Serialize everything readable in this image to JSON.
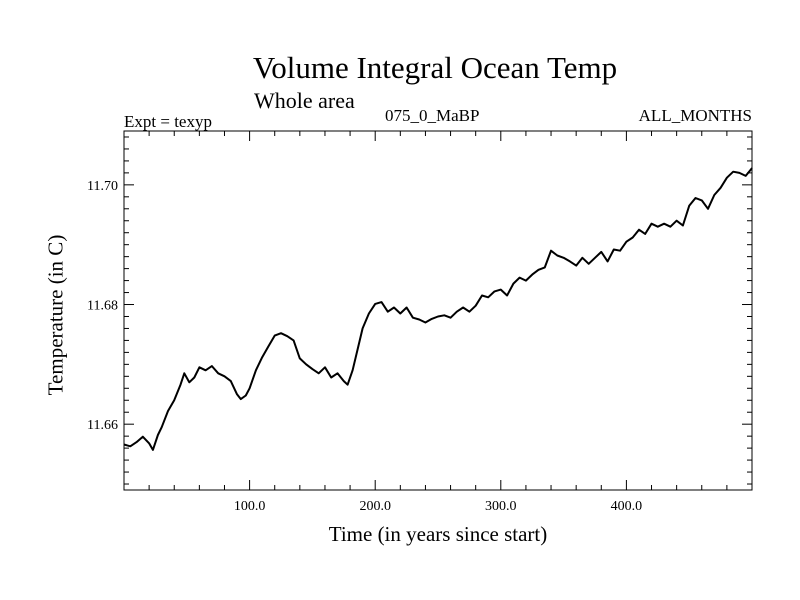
{
  "chart_data": {
    "type": "line",
    "title": "Volume Integral Ocean Temp",
    "subtitle": "Whole area",
    "annotations": {
      "left": "Expt = texyp",
      "center": "075_0_MaBP",
      "right": "ALL_MONTHS"
    },
    "xlabel": "Time (in years since start)",
    "ylabel": "Temperature (in C)",
    "xlim": [
      0,
      500
    ],
    "ylim": [
      11.649,
      11.709
    ],
    "x_major_ticks": [
      100,
      200,
      300,
      400
    ],
    "x_tick_labels": [
      "100.0",
      "200.0",
      "300.0",
      "400.0"
    ],
    "y_major_ticks": [
      11.66,
      11.68,
      11.7
    ],
    "y_tick_labels": [
      "11.66",
      "11.68",
      "11.70"
    ],
    "grid": false,
    "series": [
      {
        "color": "#000000",
        "x": [
          0,
          5,
          10,
          15,
          20,
          23,
          27,
          30,
          35,
          40,
          45,
          48,
          52,
          56,
          60,
          65,
          70,
          75,
          80,
          85,
          90,
          93,
          97,
          100,
          105,
          110,
          115,
          120,
          125,
          130,
          135,
          140,
          145,
          150,
          155,
          160,
          165,
          170,
          175,
          178,
          182,
          186,
          190,
          195,
          200,
          205,
          210,
          215,
          220,
          225,
          230,
          235,
          240,
          245,
          250,
          255,
          260,
          265,
          270,
          275,
          280,
          285,
          290,
          295,
          300,
          305,
          310,
          315,
          320,
          325,
          330,
          335,
          340,
          345,
          350,
          355,
          360,
          365,
          370,
          375,
          380,
          385,
          390,
          395,
          400,
          405,
          410,
          415,
          420,
          425,
          430,
          435,
          440,
          445,
          450,
          455,
          460,
          465,
          470,
          475,
          480,
          485,
          490,
          495,
          500
        ],
        "y": [
          11.6566,
          11.6563,
          11.657,
          11.6579,
          11.6568,
          11.6557,
          11.6582,
          11.6595,
          11.6622,
          11.664,
          11.6666,
          11.6685,
          11.667,
          11.6678,
          11.6695,
          11.669,
          11.6697,
          11.6685,
          11.668,
          11.6672,
          11.665,
          11.6642,
          11.6648,
          11.666,
          11.669,
          11.6712,
          11.673,
          11.6748,
          11.6752,
          11.6747,
          11.674,
          11.671,
          11.67,
          11.6692,
          11.6685,
          11.6695,
          11.6678,
          11.6685,
          11.6672,
          11.6666,
          11.669,
          11.6725,
          11.676,
          11.6785,
          11.6801,
          11.6804,
          11.6788,
          11.6795,
          11.6785,
          11.6795,
          11.6778,
          11.6775,
          11.677,
          11.6776,
          11.678,
          11.6782,
          11.6778,
          11.6788,
          11.6795,
          11.6788,
          11.6798,
          11.6815,
          11.6812,
          11.6822,
          11.6825,
          11.6815,
          11.6835,
          11.6845,
          11.684,
          11.685,
          11.6858,
          11.6862,
          11.689,
          11.6882,
          11.6878,
          11.6872,
          11.6865,
          11.6878,
          11.6868,
          11.6878,
          11.6888,
          11.6872,
          11.6892,
          11.689,
          11.6905,
          11.6912,
          11.6925,
          11.6918,
          11.6935,
          11.693,
          11.6935,
          11.693,
          11.694,
          11.6932,
          11.6965,
          11.6978,
          11.6974,
          11.696,
          11.6983,
          11.6995,
          11.7012,
          11.7022,
          11.702,
          11.7015,
          11.7028
        ]
      }
    ]
  }
}
